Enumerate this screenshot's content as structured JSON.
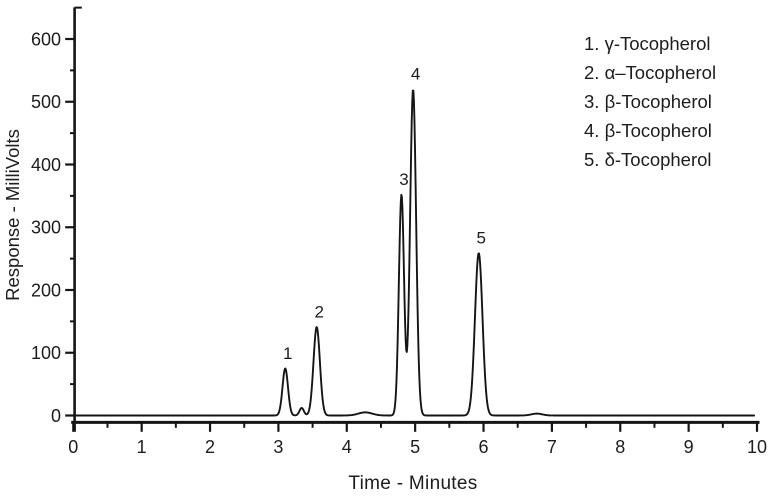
{
  "figure": {
    "background_color": "#ffffff",
    "trace_color": "#151515",
    "axis_color": "#151515",
    "text_color": "#1d1d1d"
  },
  "chart_data": {
    "type": "line",
    "title": "",
    "xlabel": "Time - Minutes",
    "ylabel": "Response - MilliVolts",
    "xlim": [
      0,
      10
    ],
    "ylim": [
      0,
      650
    ],
    "xticks": [
      0,
      1,
      2,
      3,
      4,
      5,
      6,
      7,
      8,
      9,
      10
    ],
    "yticks": [
      0,
      100,
      200,
      300,
      400,
      500,
      600
    ],
    "x_minor_interval": 0.5,
    "y_minor_interval": 50,
    "grid": "off",
    "baseline_mV": 0,
    "peaks": [
      {
        "label": "1",
        "compound": "γ-Tocopherol",
        "rt_min": 3.1,
        "height_mV": 75,
        "sigma_min": 0.04
      },
      {
        "label": "",
        "compound": "",
        "rt_min": 3.34,
        "height_mV": 12,
        "sigma_min": 0.032
      },
      {
        "label": "2",
        "compound": "α–Tocopherol",
        "rt_min": 3.56,
        "height_mV": 141,
        "sigma_min": 0.047
      },
      {
        "label": "",
        "compound": "",
        "rt_min": 4.27,
        "height_mV": 5,
        "sigma_min": 0.1
      },
      {
        "label": "3",
        "compound": "β-Tocopherol",
        "rt_min": 4.8,
        "height_mV": 352,
        "sigma_min": 0.038
      },
      {
        "label": "4",
        "compound": "β-Tocopherol",
        "rt_min": 4.97,
        "height_mV": 520,
        "sigma_min": 0.044
      },
      {
        "label": "5",
        "compound": "δ-Tocopherol",
        "rt_min": 5.93,
        "height_mV": 259,
        "sigma_min": 0.055
      },
      {
        "label": "",
        "compound": "",
        "rt_min": 6.78,
        "height_mV": 3,
        "sigma_min": 0.08
      }
    ],
    "legend": {
      "position": "top-right",
      "entries": [
        "1. γ-Tocopherol",
        "2. α–Tocopherol",
        "3. β-Tocopherol",
        "4. β-Tocopherol",
        "5. δ-Tocopherol"
      ]
    }
  }
}
